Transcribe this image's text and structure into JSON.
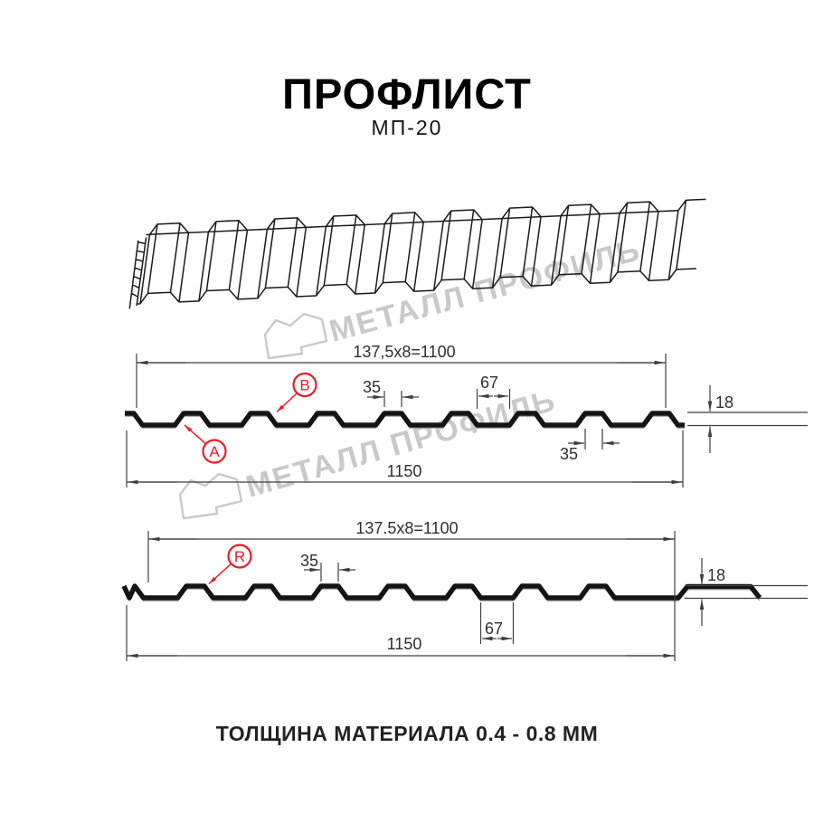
{
  "page_title": "ПРОФЛИСТ",
  "product_code": "МП-20",
  "footer_note": "ТОЛЩИНА МАТЕРИАЛА 0.4 - 0.8 ММ",
  "watermark": {
    "text": "МЕТАЛЛ ПРОФИЛЬ"
  },
  "colors": {
    "accent_red": "#ec1c24",
    "drawing_black": "#141414",
    "dimension_line": "#3f3f3f",
    "watermark_gray": "#c9c9c9"
  },
  "profile_views": {
    "front": {
      "callouts": [
        "A",
        "B"
      ],
      "dims": {
        "pitch_formula": "137,5x8=1100",
        "rib_top_width": "35",
        "valley_width": "67",
        "height": "18",
        "rib_width_lower": "35",
        "overall_width": "1150"
      }
    },
    "reverse": {
      "callouts": [
        "R"
      ],
      "dims": {
        "pitch_formula": "137.5x8=1100",
        "rib_top_width": "35",
        "valley_width": "67",
        "height": "18",
        "overall_width": "1150"
      }
    }
  }
}
